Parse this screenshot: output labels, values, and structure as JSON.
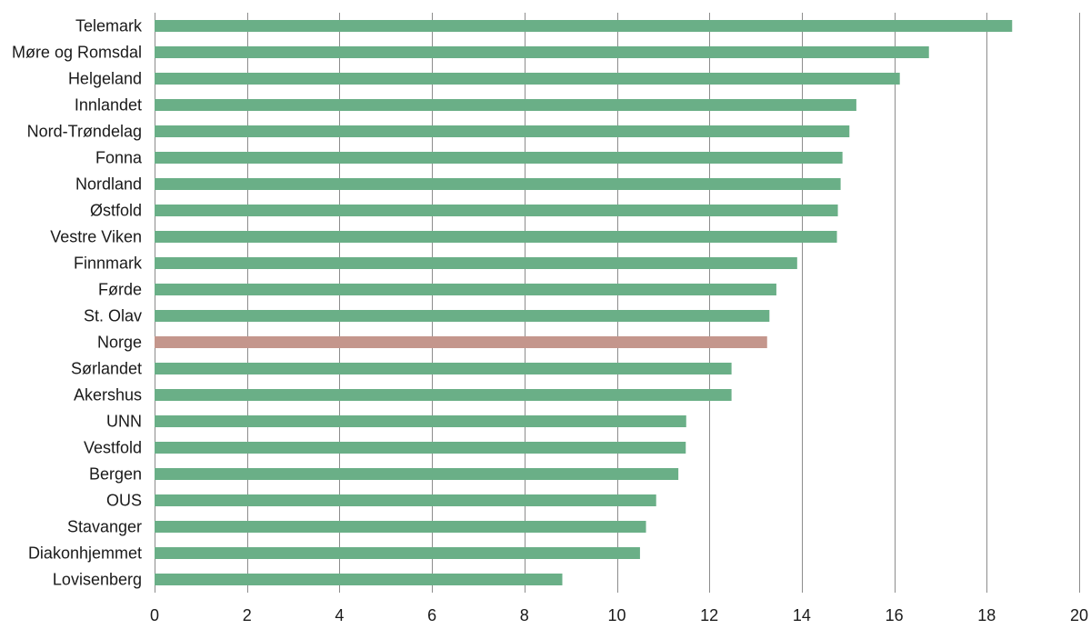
{
  "chart_data": {
    "type": "bar",
    "orientation": "horizontal",
    "title": "",
    "xlabel": "",
    "ylabel": "",
    "xlim": [
      0,
      20
    ],
    "xticks": [
      0,
      2,
      4,
      6,
      8,
      10,
      12,
      14,
      16,
      18,
      20
    ],
    "grid": "vertical",
    "legend": "none",
    "colors": {
      "default": "#6aaf87",
      "highlight": "#c4968c"
    },
    "highlight_category": "Norge",
    "categories": [
      "Telemark",
      "Møre og Romsdal",
      "Helgeland",
      "Innlandet",
      "Nord-Trøndelag",
      "Fonna",
      "Nordland",
      "Østfold",
      "Vestre Viken",
      "Finnmark",
      "Førde",
      "St. Olav",
      "Norge",
      "Sørlandet",
      "Akershus",
      "UNN",
      "Vestfold",
      "Bergen",
      "OUS",
      "Stavanger",
      "Diakonhjemmet",
      "Lovisenberg"
    ],
    "values": [
      18.55,
      16.75,
      16.12,
      15.18,
      15.03,
      14.88,
      14.84,
      14.78,
      14.76,
      13.9,
      13.45,
      13.3,
      13.25,
      12.48,
      12.48,
      11.5,
      11.49,
      11.33,
      10.85,
      10.63,
      10.5,
      8.82
    ]
  }
}
